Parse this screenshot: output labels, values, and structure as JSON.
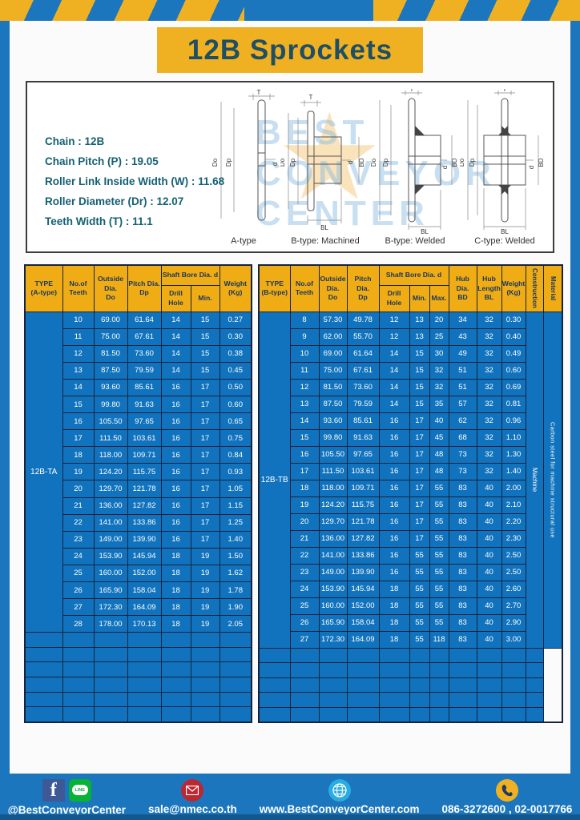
{
  "page_title": "12B Sprockets",
  "colors": {
    "frame_blue": "#1b76bd",
    "accent_yellow": "#efb122",
    "table_header_yellow": "#efac15",
    "table_cell_blue": "#1173bd",
    "grid_navy": "#16233f",
    "title_text": "#1e4f66",
    "spec_text": "#156073"
  },
  "specs": {
    "lines": [
      "Chain : 12B",
      "Chain Pitch (P) : 19.05",
      "Roller Link Inside Width (W) : 11.68",
      "Roller Diameter (Dr) : 12.07",
      "Teeth Width (T) : 11.1"
    ]
  },
  "watermark": {
    "line1": "BEST",
    "line2": "CONVEYOR",
    "line3": "CENTER",
    "star": "★"
  },
  "diagrams": {
    "labels": [
      "A-type",
      "B-type: Machined",
      "B-type: Welded",
      "C-type: Welded"
    ],
    "dims": {
      "t": "T",
      "dia_o": "Do",
      "dia_p": "Dp",
      "d": "d",
      "bd": "BD",
      "bl": "BL"
    }
  },
  "table_a": {
    "header": {
      "type": "TYPE\n(A-type)",
      "teeth": "No.of\nTeeth",
      "outside": "Outside\nDia.\nDo",
      "pitch": "Pitch Dia.\nDp",
      "shaft_bore": "Shaft Bore Dia. d",
      "drill": "Drill Hole",
      "min": "Min.",
      "weight": "Weight\n(Kg)"
    },
    "type_label": "12B-TA",
    "empty_rows": 6,
    "rows": [
      [
        "10",
        "69.00",
        "61.64",
        "14",
        "15",
        "0.27"
      ],
      [
        "11",
        "75.00",
        "67.61",
        "14",
        "15",
        "0.30"
      ],
      [
        "12",
        "81.50",
        "73.60",
        "14",
        "15",
        "0.38"
      ],
      [
        "13",
        "87.50",
        "79.59",
        "14",
        "15",
        "0.45"
      ],
      [
        "14",
        "93.60",
        "85.61",
        "16",
        "17",
        "0.50"
      ],
      [
        "15",
        "99.80",
        "91.63",
        "16",
        "17",
        "0.60"
      ],
      [
        "16",
        "105.50",
        "97.65",
        "16",
        "17",
        "0.65"
      ],
      [
        "17",
        "111.50",
        "103.61",
        "16",
        "17",
        "0.75"
      ],
      [
        "18",
        "118.00",
        "109.71",
        "16",
        "17",
        "0.84"
      ],
      [
        "19",
        "124.20",
        "115.75",
        "16",
        "17",
        "0.93"
      ],
      [
        "20",
        "129.70",
        "121.78",
        "16",
        "17",
        "1.05"
      ],
      [
        "21",
        "136.00",
        "127.82",
        "16",
        "17",
        "1.15"
      ],
      [
        "22",
        "141.00",
        "133.86",
        "16",
        "17",
        "1.25"
      ],
      [
        "23",
        "149.00",
        "139.90",
        "16",
        "17",
        "1.40"
      ],
      [
        "24",
        "153.90",
        "145.94",
        "18",
        "19",
        "1.50"
      ],
      [
        "25",
        "160.00",
        "152.00",
        "18",
        "19",
        "1.62"
      ],
      [
        "26",
        "165.90",
        "158.04",
        "18",
        "19",
        "1.78"
      ],
      [
        "27",
        "172.30",
        "164.09",
        "18",
        "19",
        "1.90"
      ],
      [
        "28",
        "178.00",
        "170.13",
        "18",
        "19",
        "2.05"
      ]
    ]
  },
  "table_b": {
    "header": {
      "type": "TYPE\n(B-type)",
      "teeth": "No.of\nTeeth",
      "outside": "Outside\nDia.\nDo",
      "pitch": "Pitch Dia.\nDp",
      "shaft_bore": "Shaft Bore Dia. d",
      "drill": "Drill Hole",
      "min": "Min.",
      "max": "Max.",
      "hub_dia": "Hub Dia.\nBD",
      "hub_len": "Hub\nLength\nBL",
      "weight": "Weight\n(Kg)",
      "construction": "Construction",
      "material": "Material"
    },
    "type_label": "12B-TB",
    "construction": "Machine",
    "material": "Carbon steel for machine structural use",
    "empty_rows": 5,
    "rows": [
      [
        "8",
        "57.30",
        "49.78",
        "12",
        "13",
        "20",
        "34",
        "32",
        "0.30"
      ],
      [
        "9",
        "62.00",
        "55.70",
        "12",
        "13",
        "25",
        "43",
        "32",
        "0.40"
      ],
      [
        "10",
        "69.00",
        "61.64",
        "14",
        "15",
        "30",
        "49",
        "32",
        "0.49"
      ],
      [
        "11",
        "75.00",
        "67.61",
        "14",
        "15",
        "32",
        "51",
        "32",
        "0.60"
      ],
      [
        "12",
        "81.50",
        "73.60",
        "14",
        "15",
        "32",
        "51",
        "32",
        "0.69"
      ],
      [
        "13",
        "87.50",
        "79.59",
        "14",
        "15",
        "35",
        "57",
        "32",
        "0.81"
      ],
      [
        "14",
        "93.60",
        "85.61",
        "16",
        "17",
        "40",
        "62",
        "32",
        "0.96"
      ],
      [
        "15",
        "99.80",
        "91.63",
        "16",
        "17",
        "45",
        "68",
        "32",
        "1.10"
      ],
      [
        "16",
        "105.50",
        "97.65",
        "16",
        "17",
        "48",
        "73",
        "32",
        "1.30"
      ],
      [
        "17",
        "111.50",
        "103.61",
        "16",
        "17",
        "48",
        "73",
        "32",
        "1.40"
      ],
      [
        "18",
        "118.00",
        "109.71",
        "16",
        "17",
        "55",
        "83",
        "40",
        "2.00"
      ],
      [
        "19",
        "124.20",
        "115.75",
        "16",
        "17",
        "55",
        "83",
        "40",
        "2.10"
      ],
      [
        "20",
        "129.70",
        "121.78",
        "16",
        "17",
        "55",
        "83",
        "40",
        "2.20"
      ],
      [
        "21",
        "136.00",
        "127.82",
        "16",
        "17",
        "55",
        "83",
        "40",
        "2.30"
      ],
      [
        "22",
        "141.00",
        "133.86",
        "16",
        "55",
        "55",
        "83",
        "40",
        "2.50"
      ],
      [
        "23",
        "149.00",
        "139.90",
        "16",
        "55",
        "55",
        "83",
        "40",
        "2.50"
      ],
      [
        "24",
        "153.90",
        "145.94",
        "18",
        "55",
        "55",
        "83",
        "40",
        "2.60"
      ],
      [
        "25",
        "160.00",
        "152.00",
        "18",
        "55",
        "55",
        "83",
        "40",
        "2.70"
      ],
      [
        "26",
        "165.90",
        "158.04",
        "18",
        "55",
        "55",
        "83",
        "40",
        "2.90"
      ],
      [
        "27",
        "172.30",
        "164.09",
        "18",
        "55",
        "118",
        "83",
        "40",
        "3.00"
      ]
    ]
  },
  "footer": {
    "facebook_f": "f",
    "line_text": "LINE",
    "social_label": "@BestConveyorCenter",
    "email": "sale@nmec.co.th",
    "website": "www.BestConveyorCenter.com",
    "phone": "086-3272600 , 02-0017766"
  }
}
